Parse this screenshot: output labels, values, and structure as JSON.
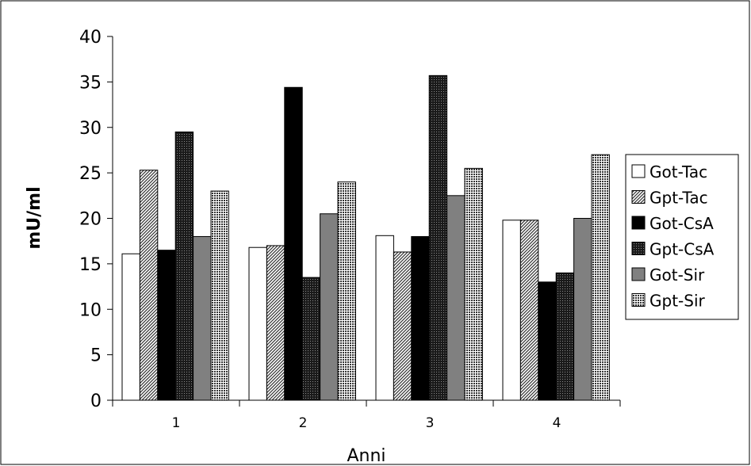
{
  "chart_data": {
    "type": "bar",
    "xlabel": "Anni",
    "ylabel": "mU/ml",
    "categories": [
      "1",
      "2",
      "3",
      "4"
    ],
    "ylim": [
      0,
      40
    ],
    "yticks": [
      "0",
      "5",
      "10",
      "15",
      "20",
      "25",
      "30",
      "35",
      "40"
    ],
    "legend_position": "right",
    "grid": false,
    "series": [
      {
        "name": "Got-Tac",
        "values": [
          16.1,
          16.8,
          18.1,
          19.8
        ],
        "fill": "#ffffff",
        "pattern": "none"
      },
      {
        "name": "Gpt-Tac",
        "values": [
          25.3,
          17.0,
          16.3,
          19.8
        ],
        "fill": "#ffffff",
        "pattern": "diagonal"
      },
      {
        "name": "Got-CsA",
        "values": [
          16.5,
          34.4,
          18.0,
          13.0
        ],
        "fill": "#000000",
        "pattern": "none"
      },
      {
        "name": "Gpt-CsA",
        "values": [
          29.5,
          13.5,
          35.7,
          14.0
        ],
        "fill": "#2b2b2b",
        "pattern": "dark-dots"
      },
      {
        "name": "Got-Sir",
        "values": [
          18.0,
          20.5,
          22.5,
          20.0
        ],
        "fill": "#808080",
        "pattern": "none"
      },
      {
        "name": "Gpt-Sir",
        "values": [
          23.0,
          24.0,
          25.5,
          27.0
        ],
        "fill": "#ffffff",
        "pattern": "dots"
      }
    ]
  }
}
